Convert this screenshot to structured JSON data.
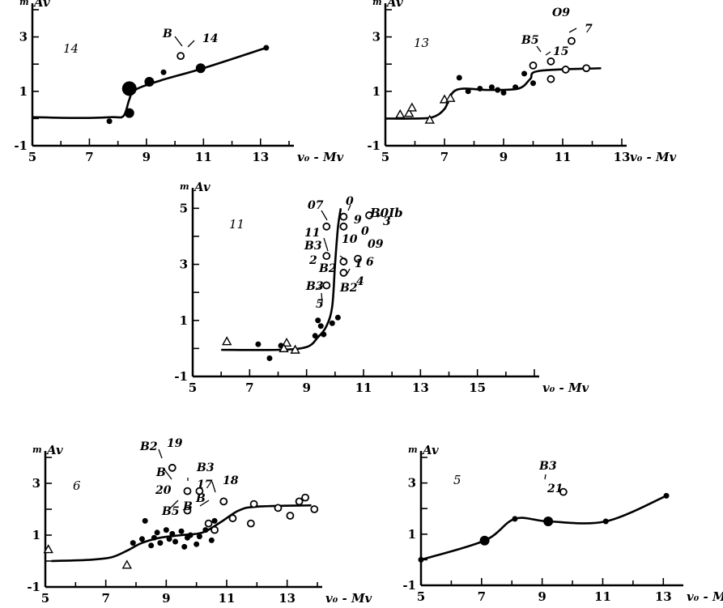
{
  "chart_data": [
    {
      "type": "line",
      "panel": "14",
      "ylabel_small": "m",
      "ylabel": "Av",
      "xlabel": "v₀ - Mv",
      "xlim": [
        5,
        14
      ],
      "ylim": [
        -1,
        4
      ],
      "x_ticks": [
        "5",
        "7",
        "9",
        "11",
        "13"
      ],
      "y_ticks": [
        "-1",
        "1",
        "3"
      ],
      "curve": {
        "x": [
          5.0,
          6.5,
          7.8,
          8.2,
          8.4,
          8.6,
          9.5,
          11.0,
          13.2
        ],
        "y": [
          0.05,
          0.02,
          0.05,
          0.1,
          0.7,
          1.05,
          1.4,
          1.85,
          2.6
        ]
      },
      "points": [
        {
          "x": 7.7,
          "y": -0.1,
          "marker": "filled",
          "size": "small"
        },
        {
          "x": 8.4,
          "y": 0.2,
          "marker": "filled",
          "size": "medium"
        },
        {
          "x": 8.4,
          "y": 1.1,
          "marker": "filled",
          "size": "large"
        },
        {
          "x": 9.1,
          "y": 1.35,
          "marker": "filled",
          "size": "medium"
        },
        {
          "x": 9.6,
          "y": 1.7,
          "marker": "filled",
          "size": "small"
        },
        {
          "x": 10.9,
          "y": 1.85,
          "marker": "filled",
          "size": "medium"
        },
        {
          "x": 13.2,
          "y": 2.6,
          "marker": "filled",
          "size": "small"
        },
        {
          "x": 10.2,
          "y": 2.3,
          "marker": "open",
          "size": "small"
        }
      ],
      "annotations": [
        "B",
        "14"
      ]
    },
    {
      "type": "line",
      "panel": "13",
      "ylabel_small": "m",
      "ylabel": "Av",
      "xlabel": "v₀ - Mv",
      "xlim": [
        5,
        13
      ],
      "ylim": [
        -1,
        4
      ],
      "x_ticks": [
        "5",
        "7",
        "9",
        "11",
        "13"
      ],
      "y_ticks": [
        "-1",
        "1",
        "3"
      ],
      "curve": {
        "x": [
          5.0,
          6.0,
          6.6,
          7.0,
          7.4,
          8.5,
          9.5,
          9.9,
          10.2,
          12.3
        ],
        "y": [
          0.0,
          0.0,
          0.05,
          0.35,
          1.05,
          1.05,
          1.1,
          1.45,
          1.75,
          1.85
        ]
      },
      "points": [
        {
          "x": 5.5,
          "y": 0.15,
          "marker": "triangle"
        },
        {
          "x": 5.8,
          "y": 0.2,
          "marker": "triangle"
        },
        {
          "x": 5.9,
          "y": 0.4,
          "marker": "triangle"
        },
        {
          "x": 6.5,
          "y": -0.05,
          "marker": "triangle"
        },
        {
          "x": 7.0,
          "y": 0.7,
          "marker": "triangle"
        },
        {
          "x": 7.2,
          "y": 0.75,
          "marker": "triangle"
        },
        {
          "x": 7.5,
          "y": 1.5,
          "marker": "filled",
          "size": "small"
        },
        {
          "x": 7.8,
          "y": 1.0,
          "marker": "filled",
          "size": "small"
        },
        {
          "x": 8.2,
          "y": 1.1,
          "marker": "filled",
          "size": "small"
        },
        {
          "x": 8.6,
          "y": 1.15,
          "marker": "filled",
          "size": "small"
        },
        {
          "x": 8.8,
          "y": 1.05,
          "marker": "filled",
          "size": "small"
        },
        {
          "x": 9.0,
          "y": 0.95,
          "marker": "filled",
          "size": "small"
        },
        {
          "x": 9.4,
          "y": 1.15,
          "marker": "filled",
          "size": "small"
        },
        {
          "x": 9.7,
          "y": 1.65,
          "marker": "filled",
          "size": "small"
        },
        {
          "x": 10.0,
          "y": 1.3,
          "marker": "filled",
          "size": "small"
        },
        {
          "x": 10.0,
          "y": 1.95,
          "marker": "open"
        },
        {
          "x": 10.6,
          "y": 1.45,
          "marker": "open"
        },
        {
          "x": 10.6,
          "y": 2.1,
          "marker": "open"
        },
        {
          "x": 11.1,
          "y": 1.8,
          "marker": "open"
        },
        {
          "x": 11.8,
          "y": 1.85,
          "marker": "open"
        },
        {
          "x": 11.3,
          "y": 2.85,
          "marker": "open"
        }
      ],
      "annotations": [
        "O9",
        "7",
        "B5",
        "15"
      ]
    },
    {
      "type": "line",
      "panel": "11",
      "ylabel_small": "m",
      "ylabel": "Av",
      "xlabel": "v₀ - Mv",
      "xlim": [
        5,
        17
      ],
      "ylim": [
        -1,
        5.5
      ],
      "x_ticks": [
        "5",
        "7",
        "9",
        "11",
        "13",
        "15"
      ],
      "y_ticks": [
        "-1",
        "1",
        "3",
        "5"
      ],
      "curve": {
        "x": [
          6.0,
          8.0,
          9.0,
          9.4,
          9.7,
          9.9,
          10.0,
          10.1,
          10.2
        ],
        "y": [
          -0.05,
          -0.05,
          0.05,
          0.4,
          0.8,
          1.5,
          3.0,
          4.3,
          5.0
        ]
      },
      "points": [
        {
          "x": 6.2,
          "y": 0.25,
          "marker": "triangle"
        },
        {
          "x": 7.3,
          "y": 0.15,
          "marker": "filled"
        },
        {
          "x": 7.7,
          "y": -0.35,
          "marker": "filled"
        },
        {
          "x": 8.1,
          "y": 0.1,
          "marker": "filled"
        },
        {
          "x": 8.3,
          "y": 0.2,
          "marker": "triangle"
        },
        {
          "x": 8.2,
          "y": 0.0,
          "marker": "triangle"
        },
        {
          "x": 8.6,
          "y": -0.05,
          "marker": "triangle"
        },
        {
          "x": 9.3,
          "y": 0.45,
          "marker": "filled"
        },
        {
          "x": 9.4,
          "y": 1.0,
          "marker": "filled"
        },
        {
          "x": 9.5,
          "y": 0.8,
          "marker": "filled"
        },
        {
          "x": 9.6,
          "y": 0.5,
          "marker": "filled"
        },
        {
          "x": 9.9,
          "y": 0.9,
          "marker": "filled"
        },
        {
          "x": 10.1,
          "y": 1.1,
          "marker": "filled"
        },
        {
          "x": 9.7,
          "y": 4.35,
          "marker": "open"
        },
        {
          "x": 10.3,
          "y": 4.7,
          "marker": "open"
        },
        {
          "x": 10.3,
          "y": 4.35,
          "marker": "open"
        },
        {
          "x": 11.2,
          "y": 4.75,
          "marker": "open"
        },
        {
          "x": 9.7,
          "y": 3.3,
          "marker": "open"
        },
        {
          "x": 10.3,
          "y": 3.1,
          "marker": "open"
        },
        {
          "x": 10.8,
          "y": 3.2,
          "marker": "open"
        },
        {
          "x": 10.3,
          "y": 2.7,
          "marker": "open"
        },
        {
          "x": 9.7,
          "y": 2.25,
          "marker": "open"
        }
      ],
      "annotations": [
        "07",
        "0",
        "B0Ib",
        "11",
        "9",
        "0",
        "3",
        "10",
        "B3",
        "09",
        "2",
        "1",
        "6",
        "B2",
        "B3",
        "4",
        "B2",
        "5"
      ]
    },
    {
      "type": "line",
      "panel": "6",
      "ylabel_small": "m",
      "ylabel": "Av",
      "xlabel": "v₀ - Mv",
      "xlim": [
        5,
        14
      ],
      "ylim": [
        -1,
        4
      ],
      "x_ticks": [
        "5",
        "7",
        "9",
        "11",
        "13"
      ],
      "y_ticks": [
        "-1",
        "1",
        "3"
      ],
      "curve": {
        "x": [
          5.2,
          6.5,
          7.2,
          7.7,
          8.2,
          8.8,
          9.5,
          10.2,
          10.8,
          11.4,
          12.0,
          13.8
        ],
        "y": [
          0.0,
          0.05,
          0.15,
          0.4,
          0.7,
          0.9,
          1.0,
          1.1,
          1.5,
          1.95,
          2.1,
          2.15
        ]
      },
      "points": [
        {
          "x": 5.1,
          "y": 0.45,
          "marker": "triangle"
        },
        {
          "x": 7.7,
          "y": -0.15,
          "marker": "triangle"
        },
        {
          "x": 7.9,
          "y": 0.7,
          "marker": "filled",
          "size": "small"
        },
        {
          "x": 8.2,
          "y": 0.85,
          "marker": "filled",
          "size": "small"
        },
        {
          "x": 8.3,
          "y": 1.55,
          "marker": "filled",
          "size": "small"
        },
        {
          "x": 8.5,
          "y": 0.6,
          "marker": "filled",
          "size": "small"
        },
        {
          "x": 8.6,
          "y": 0.9,
          "marker": "filled",
          "size": "small"
        },
        {
          "x": 8.7,
          "y": 1.1,
          "marker": "filled",
          "size": "small"
        },
        {
          "x": 8.8,
          "y": 0.7,
          "marker": "filled",
          "size": "small"
        },
        {
          "x": 9.0,
          "y": 1.2,
          "marker": "filled",
          "size": "small"
        },
        {
          "x": 9.1,
          "y": 0.85,
          "marker": "filled",
          "size": "small"
        },
        {
          "x": 9.2,
          "y": 1.05,
          "marker": "filled",
          "size": "small"
        },
        {
          "x": 9.3,
          "y": 0.75,
          "marker": "filled",
          "size": "small"
        },
        {
          "x": 9.5,
          "y": 1.15,
          "marker": "filled",
          "size": "small"
        },
        {
          "x": 9.6,
          "y": 0.55,
          "marker": "filled",
          "size": "small"
        },
        {
          "x": 9.7,
          "y": 0.9,
          "marker": "filled",
          "size": "small"
        },
        {
          "x": 9.8,
          "y": 1.0,
          "marker": "filled",
          "size": "small"
        },
        {
          "x": 10.0,
          "y": 0.65,
          "marker": "filled",
          "size": "small"
        },
        {
          "x": 10.1,
          "y": 0.95,
          "marker": "filled",
          "size": "small"
        },
        {
          "x": 10.3,
          "y": 1.2,
          "marker": "filled",
          "size": "small"
        },
        {
          "x": 10.5,
          "y": 0.8,
          "marker": "filled",
          "size": "small"
        },
        {
          "x": 10.6,
          "y": 1.55,
          "marker": "filled",
          "size": "small"
        },
        {
          "x": 9.7,
          "y": 1.95,
          "marker": "open"
        },
        {
          "x": 10.4,
          "y": 1.45,
          "marker": "open"
        },
        {
          "x": 10.6,
          "y": 1.2,
          "marker": "open"
        },
        {
          "x": 10.9,
          "y": 2.3,
          "marker": "open"
        },
        {
          "x": 11.2,
          "y": 1.65,
          "marker": "open"
        },
        {
          "x": 11.8,
          "y": 1.45,
          "marker": "open"
        },
        {
          "x": 11.9,
          "y": 2.2,
          "marker": "open"
        },
        {
          "x": 12.7,
          "y": 2.05,
          "marker": "open"
        },
        {
          "x": 13.1,
          "y": 1.75,
          "marker": "open"
        },
        {
          "x": 13.4,
          "y": 2.3,
          "marker": "open"
        },
        {
          "x": 13.6,
          "y": 2.45,
          "marker": "open"
        },
        {
          "x": 13.9,
          "y": 2.0,
          "marker": "open"
        },
        {
          "x": 9.2,
          "y": 3.6,
          "marker": "open"
        },
        {
          "x": 9.7,
          "y": 2.7,
          "marker": "open"
        },
        {
          "x": 10.1,
          "y": 2.7,
          "marker": "open"
        }
      ],
      "annotations": [
        "B2",
        "19",
        "B",
        "B3",
        "20",
        "17",
        "18",
        "B5",
        "B",
        "B"
      ]
    },
    {
      "type": "line",
      "panel": "5",
      "ylabel_small": "m",
      "ylabel": "Av",
      "xlabel": "v₀ - Mv",
      "xlim": [
        5,
        13.5
      ],
      "ylim": [
        -1,
        4
      ],
      "x_ticks": [
        "5",
        "7",
        "9",
        "11",
        "13"
      ],
      "y_ticks": [
        "-1",
        "1",
        "3"
      ],
      "curve": {
        "x": [
          5.0,
          7.1,
          8.1,
          9.2,
          11.1,
          13.1
        ],
        "y": [
          0.0,
          0.75,
          1.6,
          1.5,
          1.5,
          2.5
        ]
      },
      "points": [
        {
          "x": 5.0,
          "y": 0.0,
          "marker": "filled",
          "size": "small"
        },
        {
          "x": 7.1,
          "y": 0.75,
          "marker": "filled",
          "size": "medium"
        },
        {
          "x": 8.1,
          "y": 1.6,
          "marker": "filled",
          "size": "small"
        },
        {
          "x": 9.2,
          "y": 1.5,
          "marker": "filled",
          "size": "medium"
        },
        {
          "x": 11.1,
          "y": 1.5,
          "marker": "filled",
          "size": "small"
        },
        {
          "x": 13.1,
          "y": 2.5,
          "marker": "filled",
          "size": "small"
        },
        {
          "x": 9.7,
          "y": 2.65,
          "marker": "open"
        }
      ],
      "annotations": [
        "B3",
        "21"
      ]
    }
  ]
}
